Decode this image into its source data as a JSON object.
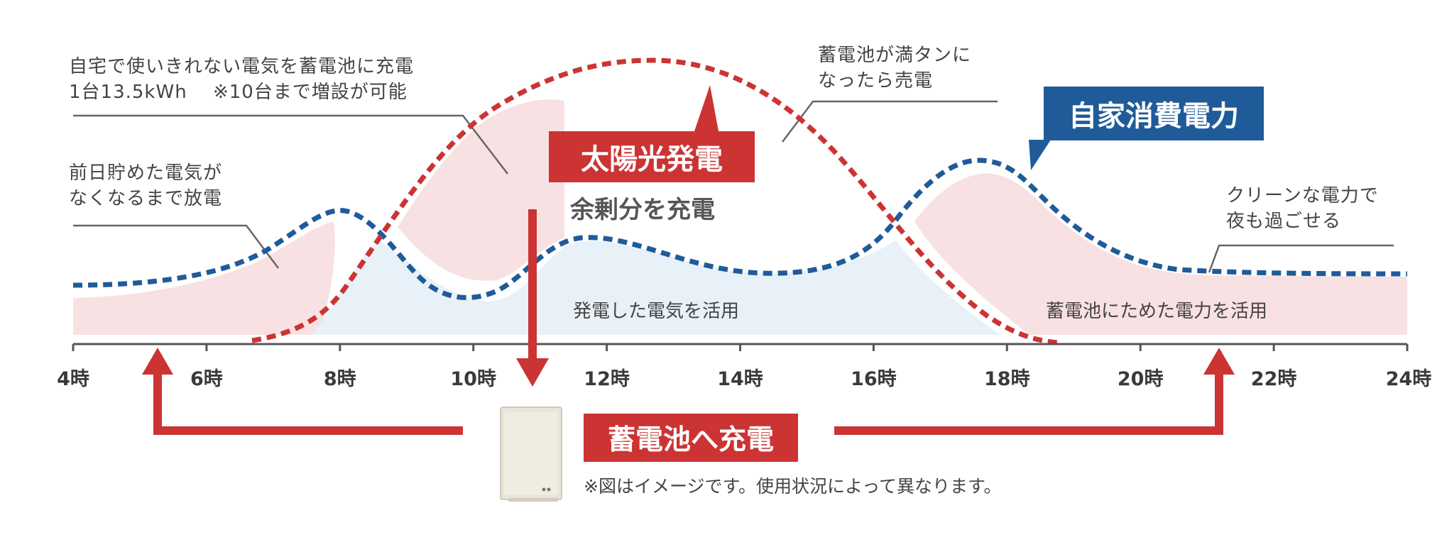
{
  "colors": {
    "solar": "#cc3333",
    "consumption": "#1f5b99",
    "pink_fill": "#f8e1e2",
    "blue_fill": "#e8f1f8",
    "axis": "#555555",
    "gray_line": "#666666"
  },
  "annotations": {
    "store_excess": "自宅で使いきれない電気を蓄電池に充電\n1台13.5kWh　 ※10台まで増設が可能",
    "discharge_morning": "前日貯めた電気が\nなくなるまで放電",
    "full_sell": "蓄電池が満タンに\nなったら売電",
    "clean_night": "クリーンな電力で\n夜も過ごせる"
  },
  "badges": {
    "solar": "太陽光発電",
    "consumption": "自家消費電力",
    "charge": "蓄電池へ充電"
  },
  "labels": {
    "surplus": "余剰分を充電",
    "use_generated": "発電した電気を活用",
    "use_stored": "蓄電池にためた電力を活用",
    "note": "※図はイメージです。使用状況によって異なります。"
  },
  "axis": {
    "ticks": [
      "4時",
      "6時",
      "8時",
      "10時",
      "12時",
      "14時",
      "16時",
      "18時",
      "20時",
      "22時",
      "24時"
    ]
  },
  "icons": {
    "battery": "battery-unit-icon"
  }
}
